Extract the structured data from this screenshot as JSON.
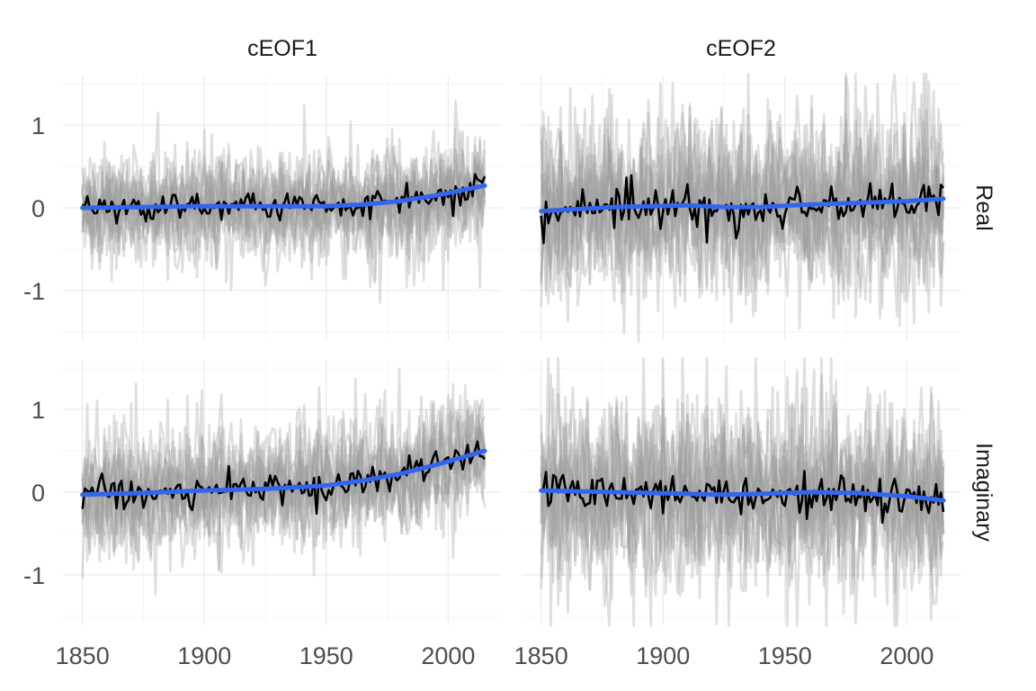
{
  "chart_data": {
    "type": "line",
    "facet_columns": [
      "cEOF1",
      "cEOF2"
    ],
    "facet_rows": [
      "Real",
      "Imaginary"
    ],
    "x_ticks": [
      "1850",
      "1900",
      "1950",
      "2000"
    ],
    "y_ticks": [
      "-1",
      "0",
      "1"
    ],
    "xlim": [
      1842,
      2022
    ],
    "ylim": [
      -1.6,
      1.6
    ],
    "grid": true,
    "colors": {
      "members": "#9a9a9a",
      "ensemble_mean": "#000000",
      "smooth_fit": "#3366ee",
      "grid_major": "#ebebeb",
      "grid_minor": "#f5f5f5",
      "text": "#4d4d4d"
    },
    "series_description": [
      "ensemble members (grey, translucent)",
      "ensemble mean (black)",
      "smoothed trend (blue)"
    ],
    "panels": [
      {
        "column": "cEOF1",
        "row": "Real",
        "x_range": [
          1850,
          2015
        ],
        "smooth_trend": {
          "x": [
            1850,
            1875,
            1900,
            1925,
            1950,
            1965,
            1980,
            1995,
            2015
          ],
          "y": [
            0.0,
            0.01,
            0.02,
            0.02,
            0.02,
            0.04,
            0.08,
            0.15,
            0.27
          ]
        },
        "member_spread_sd": 0.34,
        "mean_noise_sd": 0.09,
        "end_values": [
          0.38,
          0.27
        ]
      },
      {
        "column": "cEOF2",
        "row": "Real",
        "x_range": [
          1850,
          2015
        ],
        "smooth_trend": {
          "x": [
            1850,
            1880,
            1910,
            1925,
            1940,
            1960,
            1980,
            2000,
            2015
          ],
          "y": [
            -0.04,
            0.01,
            0.03,
            0.01,
            0.01,
            0.04,
            0.06,
            0.08,
            0.11
          ]
        },
        "member_spread_sd": 0.55,
        "mean_noise_sd": 0.13,
        "end_values": [
          0.24,
          0.11
        ]
      },
      {
        "column": "cEOF1",
        "row": "Imaginary",
        "x_range": [
          1850,
          2015
        ],
        "smooth_trend": {
          "x": [
            1850,
            1875,
            1900,
            1925,
            1950,
            1965,
            1980,
            1995,
            2015
          ],
          "y": [
            -0.03,
            -0.01,
            0.02,
            0.04,
            0.08,
            0.14,
            0.22,
            0.33,
            0.5
          ]
        },
        "member_spread_sd": 0.36,
        "mean_noise_sd": 0.1,
        "end_values": [
          0.4,
          0.5
        ]
      },
      {
        "column": "cEOF2",
        "row": "Imaginary",
        "x_range": [
          1850,
          2015
        ],
        "smooth_trend": {
          "x": [
            1850,
            1880,
            1910,
            1925,
            1940,
            1960,
            1980,
            2000,
            2015
          ],
          "y": [
            0.02,
            0.0,
            -0.02,
            -0.03,
            -0.02,
            0.0,
            -0.01,
            -0.05,
            -0.1
          ]
        },
        "member_spread_sd": 0.58,
        "mean_noise_sd": 0.12,
        "end_values": [
          -0.24,
          -0.1
        ]
      }
    ]
  }
}
